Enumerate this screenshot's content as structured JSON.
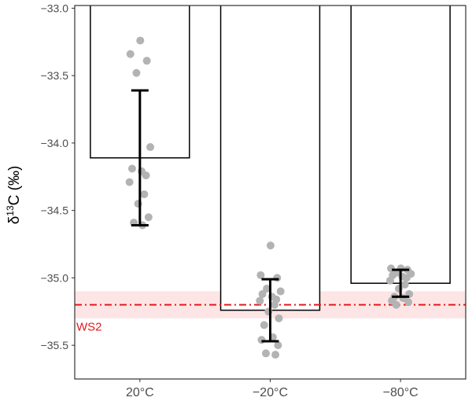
{
  "chart_data": {
    "type": "bar",
    "categories": [
      "20°C",
      "−20°C",
      "−80°C"
    ],
    "series": [
      {
        "values": [
          -34.11,
          -35.24,
          -35.04
        ],
        "error_low": [
          -34.61,
          -35.47,
          -35.14
        ],
        "error_high": [
          -33.61,
          -35.01,
          -34.94
        ],
        "points": [
          [
            -33.24,
            -33.34,
            -33.39,
            -33.48,
            -34.03,
            -34.19,
            -34.21,
            -34.24,
            -34.29,
            -34.38,
            -34.45,
            -34.55,
            -34.59,
            -34.61
          ],
          [
            -34.76,
            -34.98,
            -35.0,
            -35.08,
            -35.1,
            -35.12,
            -35.14,
            -35.16,
            -35.17,
            -35.2,
            -35.25,
            -35.3,
            -35.35,
            -35.44,
            -35.46,
            -35.5,
            -35.56,
            -35.57
          ],
          [
            -34.93,
            -34.93,
            -34.94,
            -34.96,
            -34.97,
            -34.98,
            -34.99,
            -35.0,
            -35.02,
            -35.05,
            -35.08,
            -35.12,
            -35.14,
            -35.15,
            -35.17,
            -35.18,
            -35.2
          ]
        ]
      }
    ],
    "ylabel_parts": [
      "δ",
      "13",
      "C (‰)"
    ],
    "ylim": [
      -35.75,
      -32.98
    ],
    "yticks": [
      -33.0,
      -33.5,
      -34.0,
      -34.5,
      -35.0,
      -35.5
    ],
    "ytick_labels": [
      "−33.0",
      "−33.5",
      "−34.0",
      "−34.5",
      "−35.0",
      "−35.5"
    ],
    "reference": {
      "label": "WS2",
      "value": -35.2,
      "band": [
        -35.3,
        -35.1
      ],
      "color": "#e31a1c",
      "band_color": "#fde5e5"
    },
    "colors": {
      "points": "#b3b3b3",
      "bar_edge": "#000000",
      "bar_fill": "#ffffff",
      "error": "#000000"
    },
    "grid": false,
    "legend": "none"
  }
}
